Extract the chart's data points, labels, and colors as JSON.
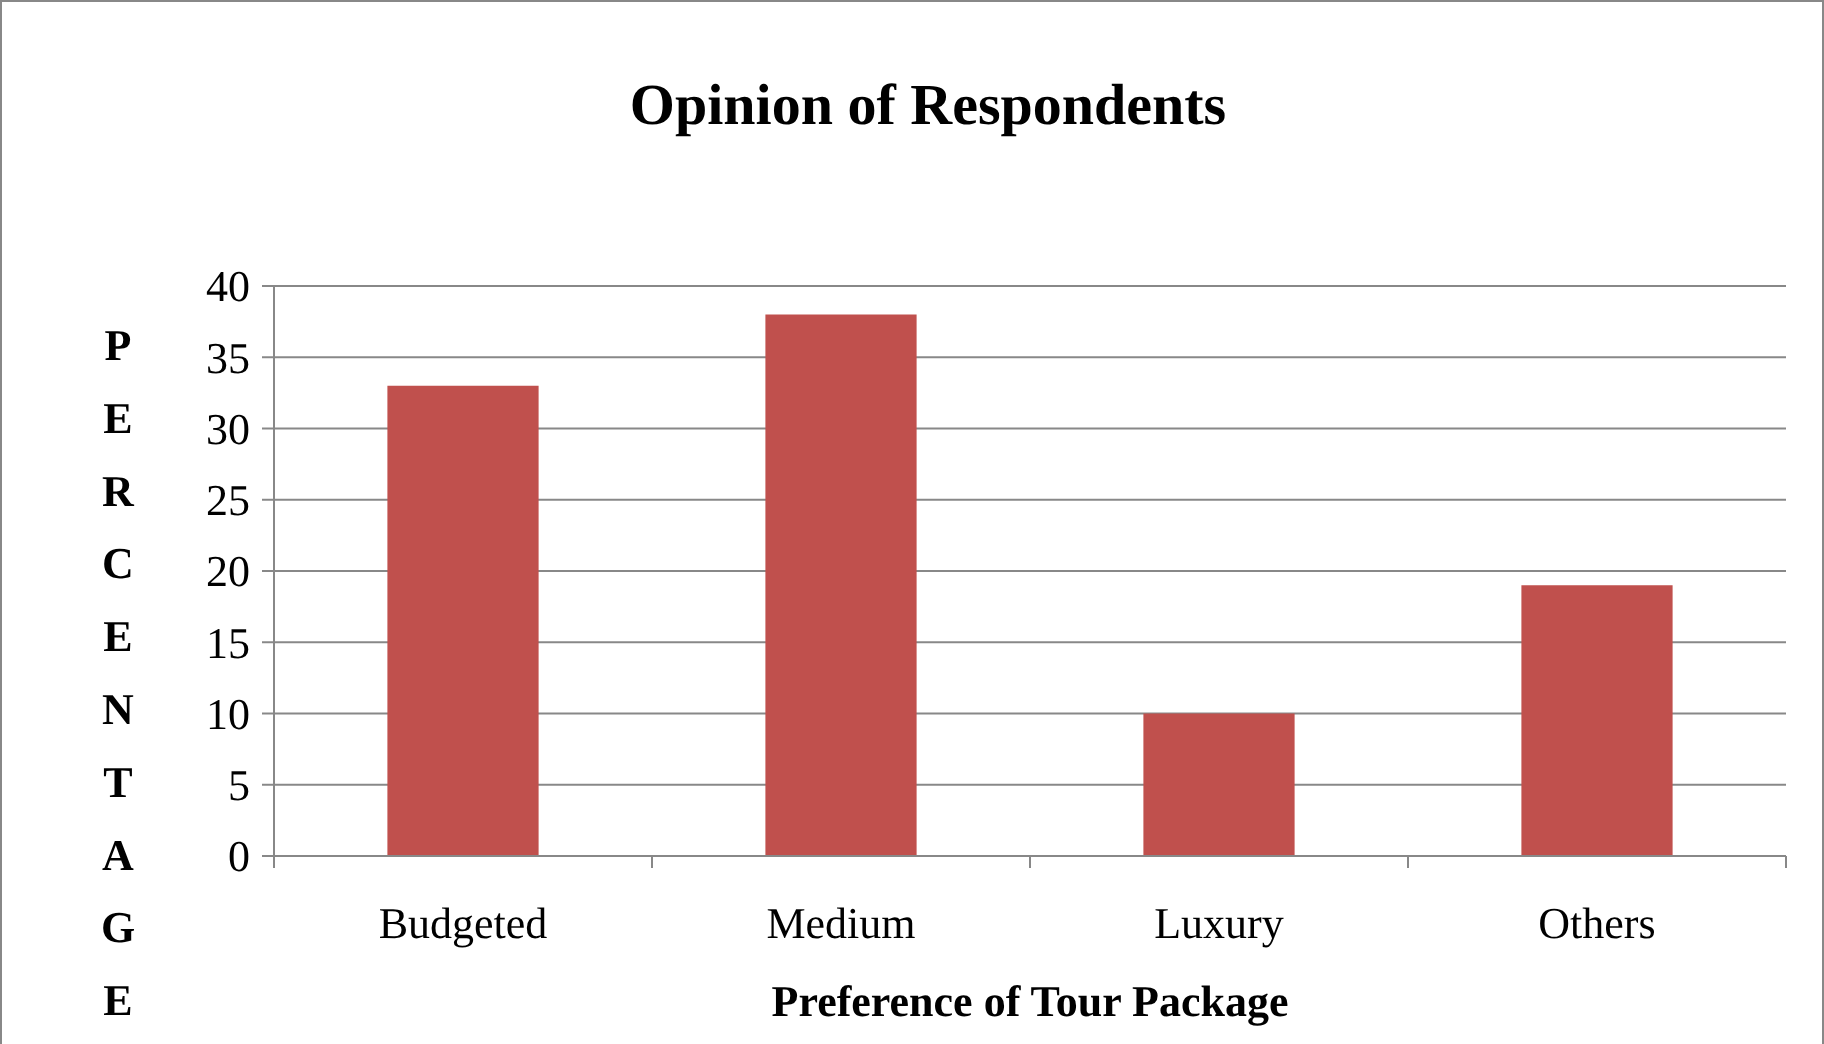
{
  "chart_data": {
    "type": "bar",
    "title": "Opinion of Respondents",
    "xlabel": "Preference of Tour Package",
    "ylabel": "PERCENTAGE",
    "categories": [
      "Budgeted",
      "Medium",
      "Luxury",
      "Others"
    ],
    "values": [
      33,
      38,
      10,
      19
    ],
    "color": "#c0504d",
    "ylim": [
      0,
      40
    ],
    "yticks": [
      0,
      5,
      10,
      15,
      20,
      25,
      30,
      35,
      40
    ],
    "grid": "y"
  }
}
